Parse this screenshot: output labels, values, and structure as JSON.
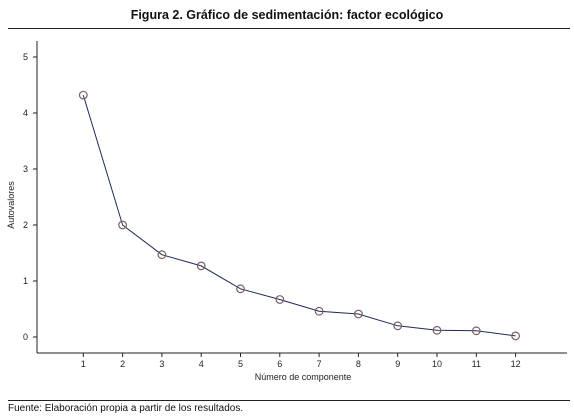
{
  "figure": {
    "title": "Figura 2. Gráfico de sedimentación: factor ecológico",
    "source": "Fuente: Elaboración propia a partir de los resultados."
  },
  "chart_data": {
    "type": "line",
    "title": "Figura 2. Gráfico de sedimentación: factor ecológico",
    "xlabel": "Número de componente",
    "ylabel": "Autovalores",
    "x": [
      1,
      2,
      3,
      4,
      5,
      6,
      7,
      8,
      9,
      10,
      11,
      12
    ],
    "series": [
      {
        "values": [
          4.32,
          2.0,
          1.47,
          1.27,
          0.86,
          0.67,
          0.46,
          0.41,
          0.2,
          0.12,
          0.11,
          0.02
        ]
      }
    ],
    "xlim": [
      0,
      13
    ],
    "ylim": [
      0,
      5
    ],
    "xticks": [
      "1",
      "2",
      "3",
      "4",
      "5",
      "6",
      "7",
      "8",
      "9",
      "10",
      "11",
      "12"
    ],
    "yticks": [
      "0",
      "1",
      "2",
      "3",
      "4",
      "5"
    ],
    "grid": false,
    "marker": "hollow-circle",
    "line_color": "#1f2a5a",
    "marker_color": "#7a5e5e"
  }
}
